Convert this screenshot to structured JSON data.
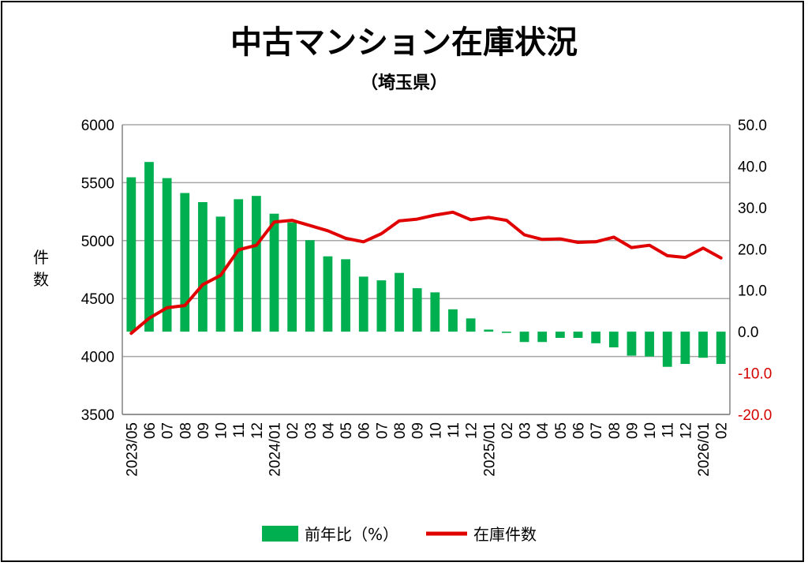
{
  "chart_data": {
    "type": "bar+line",
    "title": "中古マンション在庫状況",
    "subtitle": "（埼玉県）",
    "ylabel": "件数",
    "categories": [
      "2023/05",
      "06",
      "07",
      "08",
      "09",
      "10",
      "11",
      "12",
      "2024/01",
      "02",
      "03",
      "04",
      "05",
      "06",
      "07",
      "08",
      "09",
      "10",
      "11",
      "12",
      "2025/01",
      "02",
      "03",
      "04",
      "05",
      "06",
      "07",
      "08",
      "09",
      "10",
      "11",
      "12",
      "2026/01",
      "02"
    ],
    "left_axis": {
      "ylim": [
        3500,
        6000
      ],
      "ticks": [
        "3500",
        "4000",
        "4500",
        "5000",
        "5500",
        "6000"
      ]
    },
    "right_axis": {
      "ylim": [
        -20,
        50
      ],
      "ticks": [
        "-20.0",
        "-10.0",
        "0.0",
        "10.0",
        "20.0",
        "30.0",
        "40.0",
        "50.0"
      ]
    },
    "grid": true,
    "legend_position": "bottom",
    "series": [
      {
        "name": "前年比（%）",
        "type": "bar",
        "axis": "right",
        "color": "#00b050",
        "values": [
          37.3,
          41.0,
          37.1,
          33.5,
          31.3,
          27.8,
          32.0,
          32.8,
          28.5,
          26.4,
          22.1,
          18.2,
          17.5,
          13.3,
          12.4,
          14.2,
          10.5,
          9.5,
          5.4,
          3.2,
          0.5,
          -0.3,
          -2.5,
          -2.5,
          -1.5,
          -1.5,
          -2.8,
          -3.8,
          -5.8,
          -6.0,
          -8.5,
          -7.8,
          -6.3,
          -7.8
        ]
      },
      {
        "name": "在庫件数",
        "type": "line",
        "axis": "left",
        "color": "#e00000",
        "values": [
          4200,
          4330,
          4420,
          4440,
          4620,
          4700,
          4920,
          4960,
          5160,
          5175,
          5130,
          5085,
          5020,
          4990,
          5060,
          5170,
          5185,
          5220,
          5245,
          5180,
          5200,
          5175,
          5050,
          5010,
          5015,
          4985,
          4990,
          5030,
          4940,
          4960,
          4870,
          4855,
          4935,
          4850
        ]
      }
    ]
  }
}
